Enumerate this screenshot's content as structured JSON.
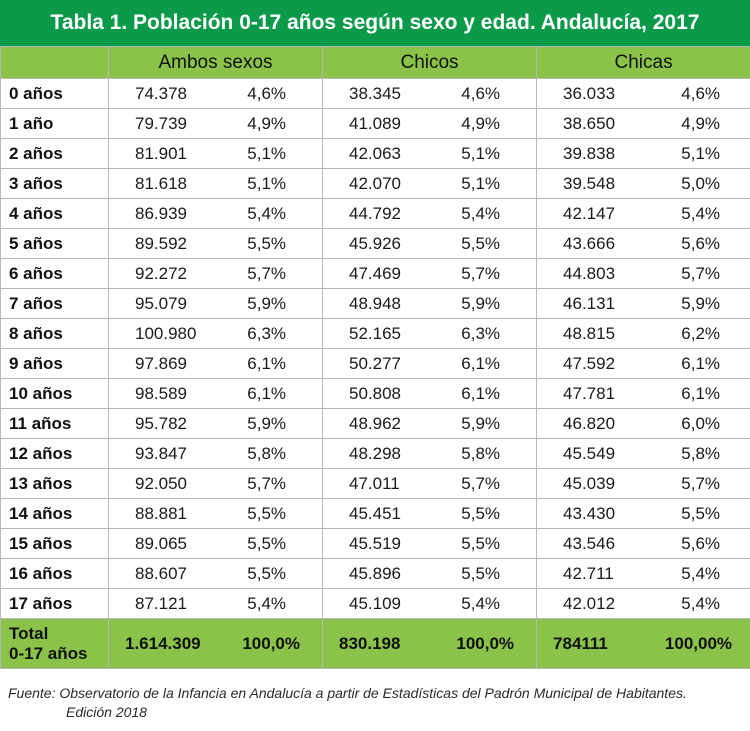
{
  "title": "Tabla 1. Población 0-17 años según sexo y edad. Andalucía, 2017",
  "headers": [
    "",
    "Ambos sexos",
    "Chicos",
    "Chicas"
  ],
  "rows": [
    {
      "age": "0 años",
      "ambos_n": "74.378",
      "ambos_p": "4,6%",
      "chicos_n": "38.345",
      "chicos_p": "4,6%",
      "chicas_n": "36.033",
      "chicas_p": "4,6%"
    },
    {
      "age": "1 año",
      "ambos_n": "79.739",
      "ambos_p": "4,9%",
      "chicos_n": "41.089",
      "chicos_p": "4,9%",
      "chicas_n": "38.650",
      "chicas_p": "4,9%"
    },
    {
      "age": "2 años",
      "ambos_n": "81.901",
      "ambos_p": "5,1%",
      "chicos_n": "42.063",
      "chicos_p": "5,1%",
      "chicas_n": "39.838",
      "chicas_p": "5,1%"
    },
    {
      "age": "3 años",
      "ambos_n": "81.618",
      "ambos_p": "5,1%",
      "chicos_n": "42.070",
      "chicos_p": "5,1%",
      "chicas_n": "39.548",
      "chicas_p": "5,0%"
    },
    {
      "age": "4 años",
      "ambos_n": "86.939",
      "ambos_p": "5,4%",
      "chicos_n": "44.792",
      "chicos_p": "5,4%",
      "chicas_n": "42.147",
      "chicas_p": "5,4%"
    },
    {
      "age": "5 años",
      "ambos_n": "89.592",
      "ambos_p": "5,5%",
      "chicos_n": "45.926",
      "chicos_p": "5,5%",
      "chicas_n": "43.666",
      "chicas_p": "5,6%"
    },
    {
      "age": "6 años",
      "ambos_n": "92.272",
      "ambos_p": "5,7%",
      "chicos_n": "47.469",
      "chicos_p": "5,7%",
      "chicas_n": "44.803",
      "chicas_p": "5,7%"
    },
    {
      "age": "7 años",
      "ambos_n": "95.079",
      "ambos_p": "5,9%",
      "chicos_n": "48.948",
      "chicos_p": "5,9%",
      "chicas_n": "46.131",
      "chicas_p": "5,9%"
    },
    {
      "age": "8 años",
      "ambos_n": "100.980",
      "ambos_p": "6,3%",
      "chicos_n": "52.165",
      "chicos_p": "6,3%",
      "chicas_n": "48.815",
      "chicas_p": "6,2%"
    },
    {
      "age": "9 años",
      "ambos_n": "97.869",
      "ambos_p": "6,1%",
      "chicos_n": "50.277",
      "chicos_p": "6,1%",
      "chicas_n": "47.592",
      "chicas_p": "6,1%"
    },
    {
      "age": "10 años",
      "ambos_n": "98.589",
      "ambos_p": "6,1%",
      "chicos_n": "50.808",
      "chicos_p": "6,1%",
      "chicas_n": "47.781",
      "chicas_p": "6,1%"
    },
    {
      "age": "11 años",
      "ambos_n": "95.782",
      "ambos_p": "5,9%",
      "chicos_n": "48.962",
      "chicos_p": "5,9%",
      "chicas_n": "46.820",
      "chicas_p": "6,0%"
    },
    {
      "age": "12 años",
      "ambos_n": "93.847",
      "ambos_p": "5,8%",
      "chicos_n": "48.298",
      "chicos_p": "5,8%",
      "chicas_n": "45.549",
      "chicas_p": "5,8%"
    },
    {
      "age": "13 años",
      "ambos_n": "92.050",
      "ambos_p": "5,7%",
      "chicos_n": "47.011",
      "chicos_p": "5,7%",
      "chicas_n": "45.039",
      "chicas_p": "5,7%"
    },
    {
      "age": "14 años",
      "ambos_n": "88.881",
      "ambos_p": "5,5%",
      "chicos_n": "45.451",
      "chicos_p": "5,5%",
      "chicas_n": "43.430",
      "chicas_p": "5,5%"
    },
    {
      "age": "15 años",
      "ambos_n": "89.065",
      "ambos_p": "5,5%",
      "chicos_n": "45.519",
      "chicos_p": "5,5%",
      "chicas_n": "43.546",
      "chicas_p": "5,6%"
    },
    {
      "age": "16 años",
      "ambos_n": "88.607",
      "ambos_p": "5,5%",
      "chicos_n": "45.896",
      "chicos_p": "5,5%",
      "chicas_n": "42.711",
      "chicas_p": "5,4%"
    },
    {
      "age": "17 años",
      "ambos_n": "87.121",
      "ambos_p": "5,4%",
      "chicos_n": "45.109",
      "chicos_p": "5,4%",
      "chicas_n": "42.012",
      "chicas_p": "5,4%"
    }
  ],
  "total": {
    "label_line1": "Total",
    "label_line2": "0-17 años",
    "ambos_n": "1.614.309",
    "ambos_p": "100,0%",
    "chicos_n": "830.198",
    "chicos_p": "100,0%",
    "chicas_n": "784111",
    "chicas_p": "100,00%"
  },
  "footnote": {
    "line1": "Fuente: Observatorio de la Infancia en Andalucía a partir de Estadísticas del Padrón Municipal de Habitantes.",
    "line2": "Edición 2018"
  },
  "colors": {
    "title_bg": "#0b9a49",
    "header_bg": "#8bc34a",
    "border": "#b8b8b8"
  }
}
